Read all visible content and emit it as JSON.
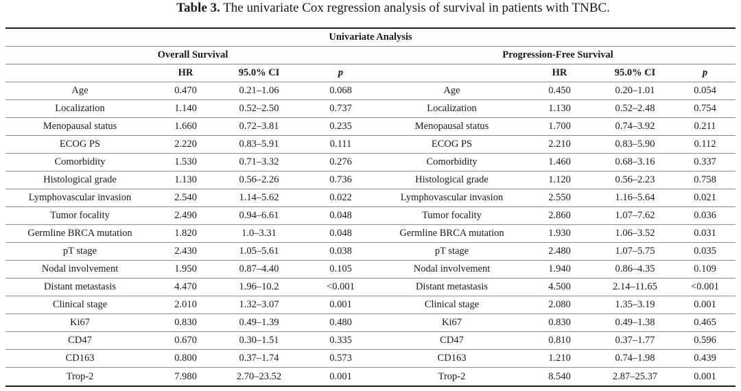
{
  "caption": {
    "label": "Table 3.",
    "text": " The univariate Cox regression analysis of survival in patients with TNBC."
  },
  "table": {
    "group_header": "Univariate Analysis",
    "os_header": "Overall Survival",
    "pfs_header": "Progression-Free Survival",
    "col_hr": "HR",
    "col_ci": "95.0% CI",
    "col_p": "p",
    "rows": [
      {
        "name": "Age",
        "os_hr": "0.470",
        "os_ci": "0.21–1.06",
        "os_p": "0.068",
        "pfs_hr": "0.450",
        "pfs_ci": "0.20–1.01",
        "pfs_p": "0.054"
      },
      {
        "name": "Localization",
        "os_hr": "1.140",
        "os_ci": "0.52–2.50",
        "os_p": "0.737",
        "pfs_hr": "1.130",
        "pfs_ci": "0.52–2.48",
        "pfs_p": "0.754"
      },
      {
        "name": "Menopausal status",
        "os_hr": "1.660",
        "os_ci": "0.72–3.81",
        "os_p": "0.235",
        "pfs_hr": "1.700",
        "pfs_ci": "0.74–3.92",
        "pfs_p": "0.211"
      },
      {
        "name": "ECOG PS",
        "os_hr": "2.220",
        "os_ci": "0.83–5.91",
        "os_p": "0.111",
        "pfs_hr": "2.210",
        "pfs_ci": "0.83–5.90",
        "pfs_p": "0.112"
      },
      {
        "name": "Comorbidity",
        "os_hr": "1.530",
        "os_ci": "0.71–3.32",
        "os_p": "0.276",
        "pfs_hr": "1.460",
        "pfs_ci": "0.68–3.16",
        "pfs_p": "0.337"
      },
      {
        "name": "Histological grade",
        "os_hr": "1.130",
        "os_ci": "0.56–2.26",
        "os_p": "0.736",
        "pfs_hr": "1.120",
        "pfs_ci": "0.56–2.23",
        "pfs_p": "0.758"
      },
      {
        "name": "Lymphovascular invasion",
        "os_hr": "2.540",
        "os_ci": "1.14–5.62",
        "os_p": "0.022",
        "pfs_hr": "2.550",
        "pfs_ci": "1.16–5.64",
        "pfs_p": "0.021"
      },
      {
        "name": "Tumor focality",
        "os_hr": "2.490",
        "os_ci": "0.94–6.61",
        "os_p": "0.048",
        "pfs_hr": "2.860",
        "pfs_ci": "1.07–7.62",
        "pfs_p": "0.036"
      },
      {
        "name": "Germline BRCA mutation",
        "os_hr": "1.820",
        "os_ci": "1.0–3.31",
        "os_p": "0.048",
        "pfs_hr": "1.930",
        "pfs_ci": "1.06–3.52",
        "pfs_p": "0.031"
      },
      {
        "name": "pT stage",
        "os_hr": "2.430",
        "os_ci": "1.05–5.61",
        "os_p": "0.038",
        "pfs_hr": "2.480",
        "pfs_ci": "1.07–5.75",
        "pfs_p": "0.035"
      },
      {
        "name": "Nodal involvement",
        "os_hr": "1.950",
        "os_ci": "0.87–4.40",
        "os_p": "0.105",
        "pfs_hr": "1.940",
        "pfs_ci": "0.86–4.35",
        "pfs_p": "0.109"
      },
      {
        "name": "Distant metastasis",
        "os_hr": "4.470",
        "os_ci": "1.96–10.2",
        "os_p": "<0.001",
        "pfs_hr": "4.500",
        "pfs_ci": "2.14–11.65",
        "pfs_p": "<0.001"
      },
      {
        "name": "Clinical stage",
        "os_hr": "2.010",
        "os_ci": "1.32–3.07",
        "os_p": "0.001",
        "pfs_hr": "2.080",
        "pfs_ci": "1.35–3.19",
        "pfs_p": "0.001"
      },
      {
        "name": "Ki67",
        "os_hr": "0.830",
        "os_ci": "0.49–1.39",
        "os_p": "0.480",
        "pfs_hr": "0.830",
        "pfs_ci": "0.49–1.38",
        "pfs_p": "0.465"
      },
      {
        "name": "CD47",
        "os_hr": "0.670",
        "os_ci": "0.30–1.51",
        "os_p": "0.335",
        "pfs_hr": "0.810",
        "pfs_ci": "0.37–1.77",
        "pfs_p": "0.596"
      },
      {
        "name": "CD163",
        "os_hr": "0.800",
        "os_ci": "0.37–1.74",
        "os_p": "0.573",
        "pfs_hr": "1.210",
        "pfs_ci": "0.74–1.98",
        "pfs_p": "0.439"
      },
      {
        "name": "Trop-2",
        "os_hr": "7.980",
        "os_ci": "2.70–23.52",
        "os_p": "0.001",
        "pfs_hr": "8.540",
        "pfs_ci": "2.87–25.37",
        "pfs_p": "0.001"
      }
    ]
  }
}
